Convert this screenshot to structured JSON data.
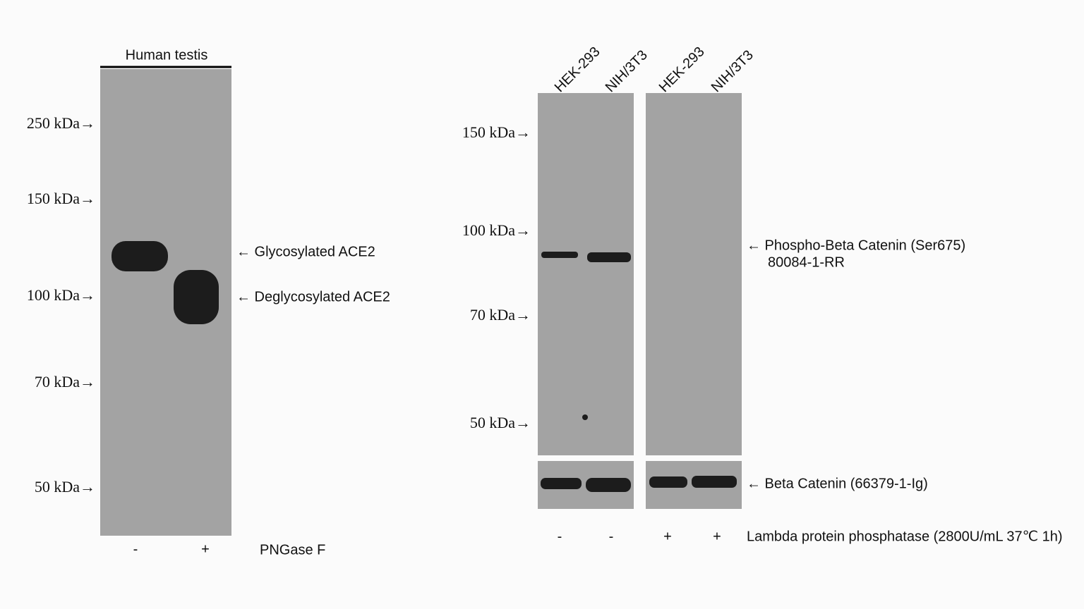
{
  "left_panel": {
    "sample": "Human testis",
    "markers": [
      "250 kDa→",
      "150 kDa→",
      "100 kDa→",
      "70 kDa→",
      "50 kDa→"
    ],
    "band_labels": [
      "← Glycosylated ACE2",
      "← Deglycosylated ACE2"
    ],
    "lanes": [
      "-",
      "+"
    ],
    "treatment": "PNGase F"
  },
  "right_panel": {
    "lanes": [
      "HEK-293",
      "NIH/3T3",
      "HEK-293",
      "NIH/3T3"
    ],
    "markers": [
      "150 kDa→",
      "100 kDa→",
      "70 kDa→",
      "50 kDa→"
    ],
    "target_label": [
      "← Phospho-Beta Catenin (Ser675)",
      "80084-1-RR"
    ],
    "control_label": "← Beta Catenin  (66379-1-Ig)",
    "treatment_signs": [
      "-",
      "-",
      "+",
      "+"
    ],
    "treatment": "Lambda protein phosphatase (2800U/mL 37℃ 1h)"
  }
}
